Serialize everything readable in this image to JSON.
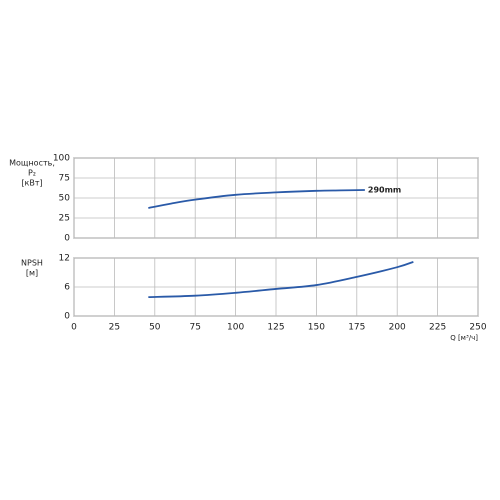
{
  "chart_data": [
    {
      "type": "line",
      "ylabel": [
        "Мощность,",
        "P₂",
        "[кВт]"
      ],
      "xlim": [
        0,
        250
      ],
      "xticks": [
        0,
        25,
        50,
        75,
        100,
        125,
        150,
        175,
        200,
        225,
        250
      ],
      "ylim": [
        0,
        100
      ],
      "yticks": [
        0,
        25,
        50,
        75,
        100
      ],
      "grid": true,
      "series": [
        {
          "name": "290mm",
          "color": "#2a5aa8",
          "x": [
            46,
            60,
            75,
            100,
            125,
            150,
            165,
            180
          ],
          "values": [
            37.5,
            43,
            48,
            54,
            57,
            59,
            59.5,
            60
          ]
        }
      ]
    },
    {
      "type": "line",
      "ylabel": [
        "NPSH",
        "[м]"
      ],
      "xlabel": "Q [м³/ч]",
      "xlim": [
        0,
        250
      ],
      "xticks": [
        0,
        25,
        50,
        75,
        100,
        125,
        150,
        175,
        200,
        225,
        250
      ],
      "ylim": [
        0,
        12
      ],
      "yticks": [
        0,
        6,
        12
      ],
      "grid": true,
      "series": [
        {
          "color": "#2a5aa8",
          "x": [
            46,
            75,
            100,
            125,
            150,
            175,
            200,
            210
          ],
          "values": [
            3.9,
            4.2,
            4.8,
            5.6,
            6.4,
            8.1,
            10.1,
            11.2
          ]
        }
      ]
    }
  ]
}
